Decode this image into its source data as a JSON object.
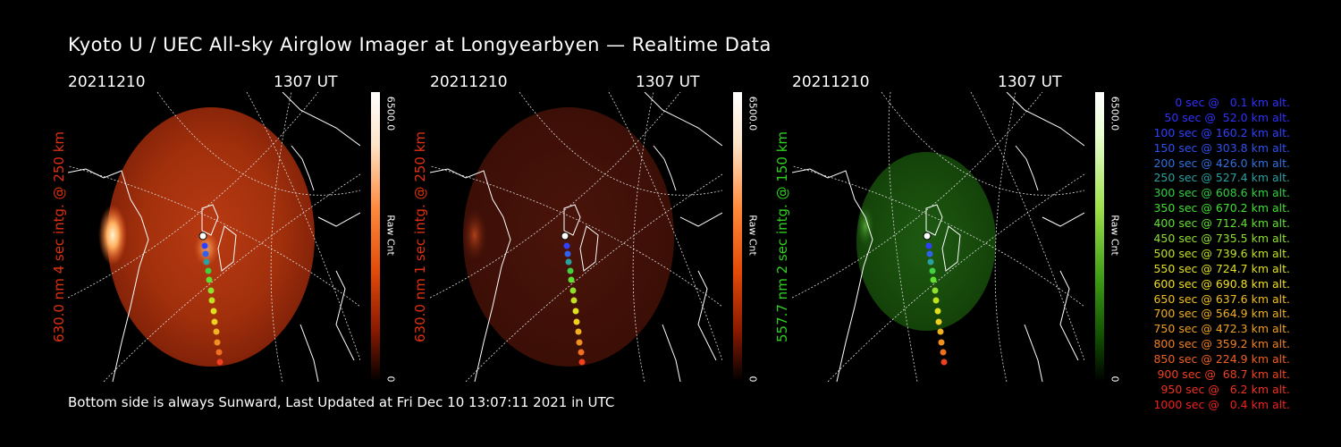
{
  "title": "Kyoto U / UEC All-sky Airglow Imager at Longyearbyen — Realtime Data",
  "panels": [
    {
      "date": "20211210",
      "time": "1307 UT",
      "label": "630.0 nm 4 sec intg. @ 250 km",
      "label_color": "#e03010",
      "cbar_max": "6500.0",
      "cbar_min": "0",
      "cbar_unit": "Raw Cnt",
      "cbar_style": "red"
    },
    {
      "date": "20211210",
      "time": "1307 UT",
      "label": "630.0 nm 1 sec intg. @ 250 km",
      "label_color": "#e03010",
      "cbar_max": "6500.0",
      "cbar_min": "0",
      "cbar_unit": "Raw Cnt",
      "cbar_style": "red"
    },
    {
      "date": "20211210",
      "time": "1307 UT",
      "label": "557.7 nm 2 sec intg. @ 150 km",
      "label_color": "#30d020",
      "cbar_max": "6500.0",
      "cbar_min": "0",
      "cbar_unit": "Raw Cnt",
      "cbar_style": "green"
    }
  ],
  "footer": "Bottom side is always Sunward, Last Updated at Fri Dec 10 13:07:11 2021 in UTC",
  "legend": [
    {
      "text": "  0 sec @   0.1 km alt.",
      "color": "#3030ff"
    },
    {
      "text": " 50 sec @  52.0 km alt.",
      "color": "#3030ff"
    },
    {
      "text": "100 sec @ 160.2 km alt.",
      "color": "#3040ff"
    },
    {
      "text": "150 sec @ 303.8 km alt.",
      "color": "#3050f0"
    },
    {
      "text": "200 sec @ 426.0 km alt.",
      "color": "#3070e0"
    },
    {
      "text": "250 sec @ 527.4 km alt.",
      "color": "#2aa0a0"
    },
    {
      "text": "300 sec @ 608.6 km alt.",
      "color": "#30d040"
    },
    {
      "text": "350 sec @ 670.2 km alt.",
      "color": "#40e030"
    },
    {
      "text": "400 sec @ 712.4 km alt.",
      "color": "#60e030"
    },
    {
      "text": "450 sec @ 735.5 km alt.",
      "color": "#90e030"
    },
    {
      "text": "500 sec @ 739.6 km alt.",
      "color": "#c0e020"
    },
    {
      "text": "550 sec @ 724.7 km alt.",
      "color": "#e0e020"
    },
    {
      "text": "600 sec @ 690.8 km alt.",
      "color": "#f0e020"
    },
    {
      "text": "650 sec @ 637.6 km alt.",
      "color": "#f0c020"
    },
    {
      "text": "700 sec @ 564.9 km alt.",
      "color": "#f0b020"
    },
    {
      "text": "750 sec @ 472.3 km alt.",
      "color": "#f0a020"
    },
    {
      "text": "800 sec @ 359.2 km alt.",
      "color": "#f08020"
    },
    {
      "text": "850 sec @ 224.9 km alt.",
      "color": "#f06020"
    },
    {
      "text": "900 sec @  68.7 km alt.",
      "color": "#f04020"
    },
    {
      "text": "950 sec @   6.2 km alt.",
      "color": "#f03020"
    },
    {
      "text": "1000 sec @   0.4 km alt.",
      "color": "#f02020"
    }
  ]
}
